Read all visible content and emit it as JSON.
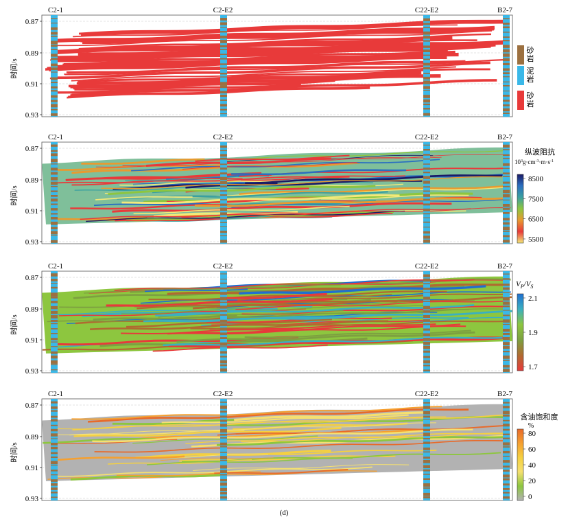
{
  "figure_label": "(d)",
  "y_axis_label": "时间/s",
  "wells": [
    "C2-1",
    "C2-E2",
    "C22-E2",
    "B2-7"
  ],
  "time_ticks": [
    "0.87",
    "0.89",
    "0.91",
    "0.93"
  ],
  "colors": {
    "sand_well": "#9c7040",
    "mud_well": "#3ab8e8",
    "sand_section": "#e83a3a",
    "grid": "#c8c8c8",
    "saturation_background": "#b2b2b2"
  },
  "panels": [
    {
      "id": "lithology",
      "legend_type": "lithology",
      "legend_items": [
        {
          "label": "砂岩",
          "color": "#9c7040"
        },
        {
          "label": "泥岩",
          "color": "#3ab8e8"
        },
        {
          "label": "砂岩",
          "color": "#e83a3a"
        }
      ]
    },
    {
      "id": "p-impedance",
      "legend_type": "colorbar",
      "legend_title": "纵波阻抗",
      "legend_unit_base": "10",
      "legend_unit_exp": "3",
      "legend_unit_rest": "g·cm",
      "legend_unit_exp2": "-3",
      "legend_unit_tail": "·m·s",
      "legend_unit_exp3": "-1",
      "colorbar_ticks": [
        "8500",
        "7500",
        "6500",
        "5500"
      ],
      "colorbar_stops": [
        "#1a1a66",
        "#2a6fc0",
        "#3aa0a0",
        "#8dc63f",
        "#e89a30",
        "#e83a3a",
        "#f3e97a"
      ]
    },
    {
      "id": "vp-vs",
      "legend_type": "colorbar",
      "legend_title_v1": "V",
      "legend_title_sub1": "P",
      "legend_title_slash": "/",
      "legend_title_v2": "V",
      "legend_title_sub2": "S",
      "colorbar_ticks": [
        "2.1",
        "1.9",
        "1.7"
      ],
      "colorbar_stops": [
        "#1f6fd0",
        "#3ab0c0",
        "#8dc63f",
        "#7da040",
        "#b06a30",
        "#e83a3a"
      ]
    },
    {
      "id": "oil-saturation",
      "legend_type": "colorbar",
      "legend_title": "含油饱和度",
      "legend_unit": "%",
      "colorbar_ticks": [
        "80",
        "60",
        "40",
        "20",
        "0"
      ],
      "colorbar_stops": [
        "#e86a2a",
        "#f5a030",
        "#f5d040",
        "#f5e070",
        "#8dc63f",
        "#b2b2b2"
      ]
    }
  ]
}
